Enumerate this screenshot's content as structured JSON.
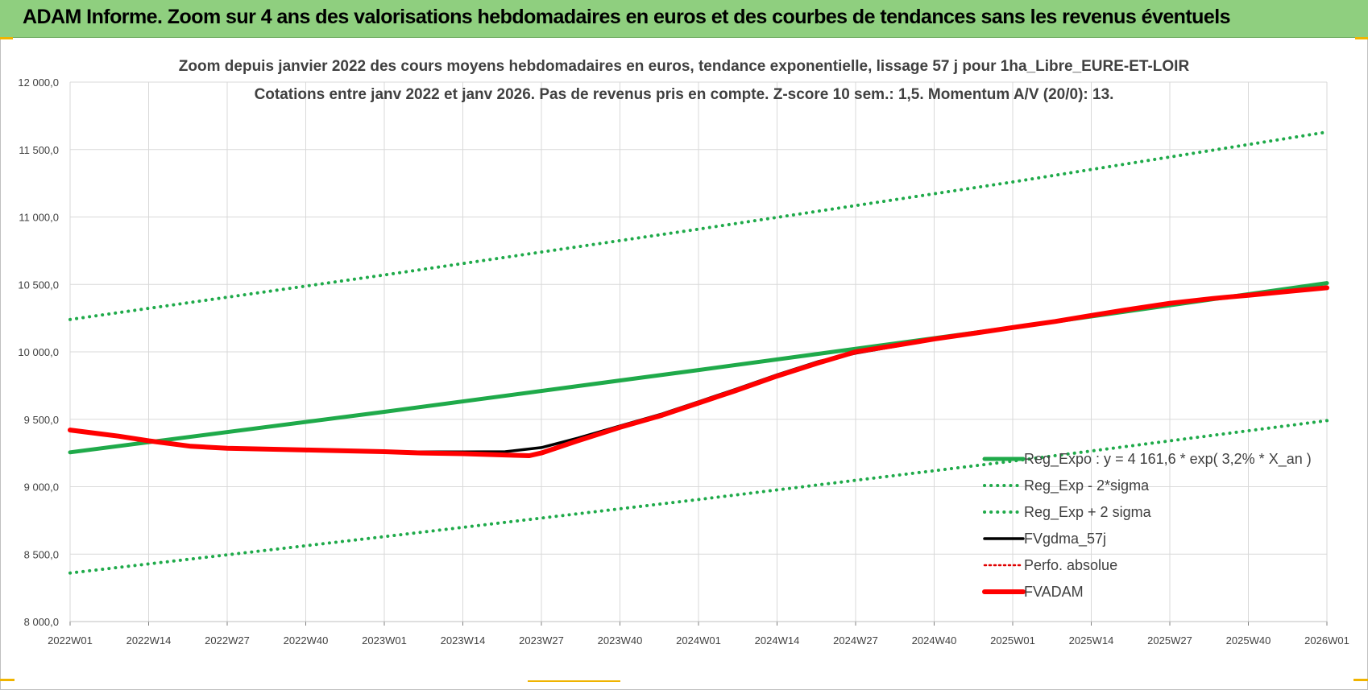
{
  "banner": {
    "title": "ADAM Informe. Zoom sur 4 ans des valorisations hebdomadaires en euros et des courbes de tendances sans les revenus éventuels"
  },
  "colors": {
    "banner": "#8fcf7f",
    "regression": "#1faa4a",
    "sigma_bands": "#1faa4a",
    "fvgdma": "#000000",
    "perfo": "#e00000",
    "fvadam": "#ff0000",
    "grid": "#d9d9d9",
    "corner_marks": "#f0b400"
  },
  "chart_data": {
    "type": "line",
    "title_lines": [
      "Zoom depuis janvier 2022 des cours moyens hebdomadaires en euros, tendance exponentielle, lissage 57 j pour 1ha_Libre_EURE-ET-LOIR",
      "Cotations entre janv 2022 et janv 2026. Pas de revenus pris en compte. Z-score 10 sem.: 1,5. Momentum A/V (20/0):  13."
    ],
    "xlabel": "",
    "ylabel": "",
    "ylim": [
      8000,
      12000
    ],
    "y_ticks": [
      8000,
      8500,
      9000,
      9500,
      10000,
      10500,
      11000,
      11500,
      12000
    ],
    "y_tick_labels": [
      "8 000,0",
      "8 500,0",
      "9 000,0",
      "9 500,0",
      "10 000,0",
      "10 500,0",
      "11 000,0",
      "11 500,0",
      "12 000,0"
    ],
    "x_range_weeks": [
      0,
      208
    ],
    "x_tick_positions": [
      0,
      13,
      26,
      39,
      52,
      65,
      78,
      91,
      104,
      117,
      130,
      143,
      156,
      169,
      182,
      195,
      208
    ],
    "x_tick_labels": [
      "2022W01",
      "2022W14",
      "2022W27",
      "2022W40",
      "2023W01",
      "2023W14",
      "2023W27",
      "2023W40",
      "2024W01",
      "2024W14",
      "2024W27",
      "2024W40",
      "2025W01",
      "2025W14",
      "2025W27",
      "2025W40",
      "2026W01"
    ],
    "grid": true,
    "legend_position": "bottom-right",
    "series": [
      {
        "name": "Reg_Expo : y = 4 161,6 * exp( 3,2% *  X_an )",
        "style": "solid-thick",
        "x": [
          0,
          52,
          104,
          156,
          208
        ],
        "values": [
          9255,
          9555,
          9865,
          10180,
          10510
        ]
      },
      {
        "name": "Reg_Exp - 2*sigma",
        "style": "dotted",
        "x": [
          0,
          52,
          104,
          156,
          208
        ],
        "values": [
          8360,
          8630,
          8905,
          9190,
          9490
        ]
      },
      {
        "name": "Reg_Exp + 2 sigma",
        "style": "dotted",
        "x": [
          0,
          52,
          104,
          156,
          208
        ],
        "values": [
          10240,
          10570,
          10910,
          11260,
          11630
        ]
      },
      {
        "name": "FVgdma_57j",
        "style": "solid",
        "x": [
          0,
          8,
          13,
          20,
          26,
          39,
          52,
          58,
          65,
          72,
          78,
          84,
          91,
          98,
          104,
          110,
          117,
          124,
          130,
          137,
          143,
          150,
          156,
          163,
          169,
          176,
          182,
          189,
          195,
          202,
          208
        ],
        "values": [
          9420,
          9375,
          9340,
          9305,
          9290,
          9275,
          9262,
          9258,
          9258,
          9260,
          9290,
          9360,
          9450,
          9540,
          9630,
          9720,
          9830,
          9930,
          9990,
          10045,
          10095,
          10140,
          10180,
          10225,
          10270,
          10320,
          10360,
          10395,
          10420,
          10450,
          10475
        ]
      },
      {
        "name": "Perfo. absolue",
        "style": "dotted",
        "x": [],
        "values": []
      },
      {
        "name": "FVADAM",
        "style": "solid-thick",
        "x": [
          0,
          8,
          13,
          20,
          26,
          39,
          52,
          58,
          65,
          72,
          76,
          78,
          84,
          91,
          98,
          104,
          110,
          117,
          124,
          130,
          137,
          143,
          150,
          156,
          163,
          169,
          176,
          182,
          189,
          195,
          202,
          208
        ],
        "values": [
          9420,
          9375,
          9340,
          9300,
          9285,
          9272,
          9260,
          9250,
          9245,
          9235,
          9230,
          9250,
          9340,
          9440,
          9530,
          9620,
          9710,
          9820,
          9920,
          10000,
          10050,
          10095,
          10140,
          10180,
          10225,
          10270,
          10320,
          10360,
          10395,
          10420,
          10450,
          10475
        ]
      }
    ]
  }
}
